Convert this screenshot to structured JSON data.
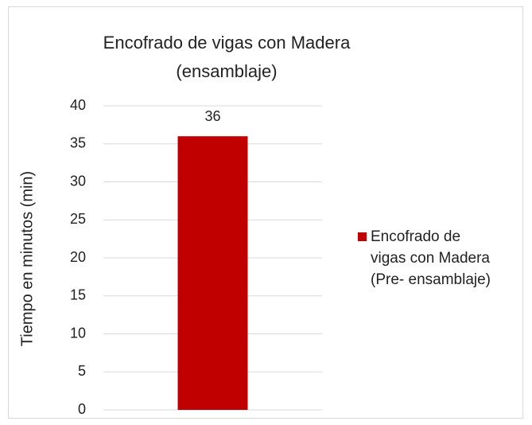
{
  "chart_data": {
    "type": "bar",
    "title": "Encofrado de vigas con Madera (ensamblaje)",
    "y_label": "Tiempo en minutos (min)",
    "categories": [
      null
    ],
    "series": [
      {
        "name": "Encofrado de vigas con Madera (Pre- ensamblaje)",
        "color": "#c00000",
        "values": [
          36
        ]
      }
    ],
    "ylim": [
      0,
      40
    ],
    "yticks": [
      0,
      5,
      10,
      15,
      20,
      25,
      30,
      35,
      40
    ],
    "grid": true,
    "legend": "right"
  }
}
